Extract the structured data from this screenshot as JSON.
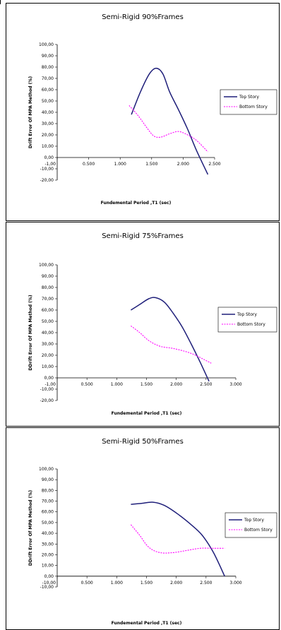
{
  "chart_data": [
    {
      "type": "line",
      "title": "Semi-Rigid 90%Frames",
      "xlabel": "Fundemental Period ,T1 (sec)",
      "ylabel": "Drift Error Of MPA Method (%)",
      "xlim": [
        -1.0,
        2.5
      ],
      "ylim": [
        -20,
        100
      ],
      "yticks": [
        "100,00",
        "90,00",
        "80,00",
        "70,00",
        "60,00",
        "50,00",
        "40,00",
        "30,00",
        "20,00",
        "10,00",
        "0,00",
        "-10,00",
        "-20,00"
      ],
      "xticks": [
        "-1,00",
        "0.500",
        "1.000",
        "1.500",
        "2.000",
        "2.500"
      ],
      "legend_position": "right",
      "series": [
        {
          "name": "Top Story",
          "color": "#1f1f7a",
          "dash": "solid",
          "x": [
            0.65,
            0.85,
            1.05,
            1.2,
            1.35,
            1.5,
            1.7,
            1.9,
            2.1,
            2.35
          ],
          "y": [
            38,
            58,
            74,
            79,
            74,
            58,
            42,
            25,
            6,
            -15
          ]
        },
        {
          "name": "Bottom Story",
          "color": "#ff00ff",
          "dash": "dashed",
          "x": [
            0.6,
            0.8,
            1.0,
            1.15,
            1.3,
            1.5,
            1.7,
            1.9,
            2.1,
            2.35
          ],
          "y": [
            46,
            37,
            26,
            19,
            18,
            21,
            23,
            20,
            15,
            5
          ]
        }
      ]
    },
    {
      "type": "line",
      "title": "Semi-Rigid 75%Frames",
      "xlabel": "Fundemental Period ,T1 (sec)",
      "ylabel": "DDrift Error Of MPA Method (%)",
      "xlim": [
        -1.0,
        3.0
      ],
      "ylim": [
        -20,
        100
      ],
      "yticks": [
        "100,00",
        "90,00",
        "80,00",
        "70,00",
        "60,00",
        "50,00",
        "40,00",
        "30,00",
        "20,00",
        "10,00",
        "0,00",
        "-10,00",
        "-20,00"
      ],
      "xticks": [
        "-1,00",
        "0.500",
        "1.000",
        "1.500",
        "2.000",
        "2.500",
        "3.000"
      ],
      "legend_position": "right",
      "series": [
        {
          "name": "Top Story",
          "color": "#1f1f7a",
          "dash": "solid",
          "x": [
            0.65,
            0.85,
            1.05,
            1.2,
            1.4,
            1.6,
            1.8,
            2.0,
            2.2,
            2.4
          ],
          "y": [
            60,
            65,
            70,
            71,
            67,
            57,
            45,
            30,
            14,
            -3
          ]
        },
        {
          "name": "Bottom Story",
          "color": "#ff00ff",
          "dash": "dashed",
          "x": [
            0.65,
            0.85,
            1.05,
            1.3,
            1.6,
            1.9,
            2.1,
            2.3,
            2.45
          ],
          "y": [
            46,
            40,
            33,
            28,
            26,
            23,
            20,
            16,
            13
          ]
        }
      ]
    },
    {
      "type": "line",
      "title": "Semi-Rigid 50%Frames",
      "xlabel": "Fundemental Period ,T1 (sec)",
      "ylabel": "DDrift Error Of MPA Method (%)",
      "xlim": [
        -1.0,
        3.0
      ],
      "ylim": [
        0,
        100
      ],
      "yticks": [
        "100,00",
        "90,00",
        "80,00",
        "70,00",
        "60,00",
        "50,00",
        "40,00",
        "30,00",
        "20,00",
        "10,00",
        "0,00",
        "-10,00"
      ],
      "xticks": [
        "-10,00",
        "0.500",
        "1.000",
        "1.500",
        "2.000",
        "2.500",
        "3.000"
      ],
      "legend_position": "right",
      "series": [
        {
          "name": "Top Story",
          "color": "#1f1f7a",
          "dash": "solid",
          "x": [
            0.65,
            0.9,
            1.15,
            1.4,
            1.7,
            2.0,
            2.25,
            2.5,
            2.75
          ],
          "y": [
            67,
            68,
            69,
            66,
            58,
            48,
            38,
            22,
            0
          ]
        },
        {
          "name": "Bottom Story",
          "color": "#ff00ff",
          "dash": "dashed",
          "x": [
            0.65,
            0.85,
            1.05,
            1.3,
            1.6,
            1.9,
            2.2,
            2.5,
            2.75
          ],
          "y": [
            48,
            38,
            27,
            22,
            22,
            24,
            26,
            26,
            26
          ]
        }
      ]
    }
  ]
}
